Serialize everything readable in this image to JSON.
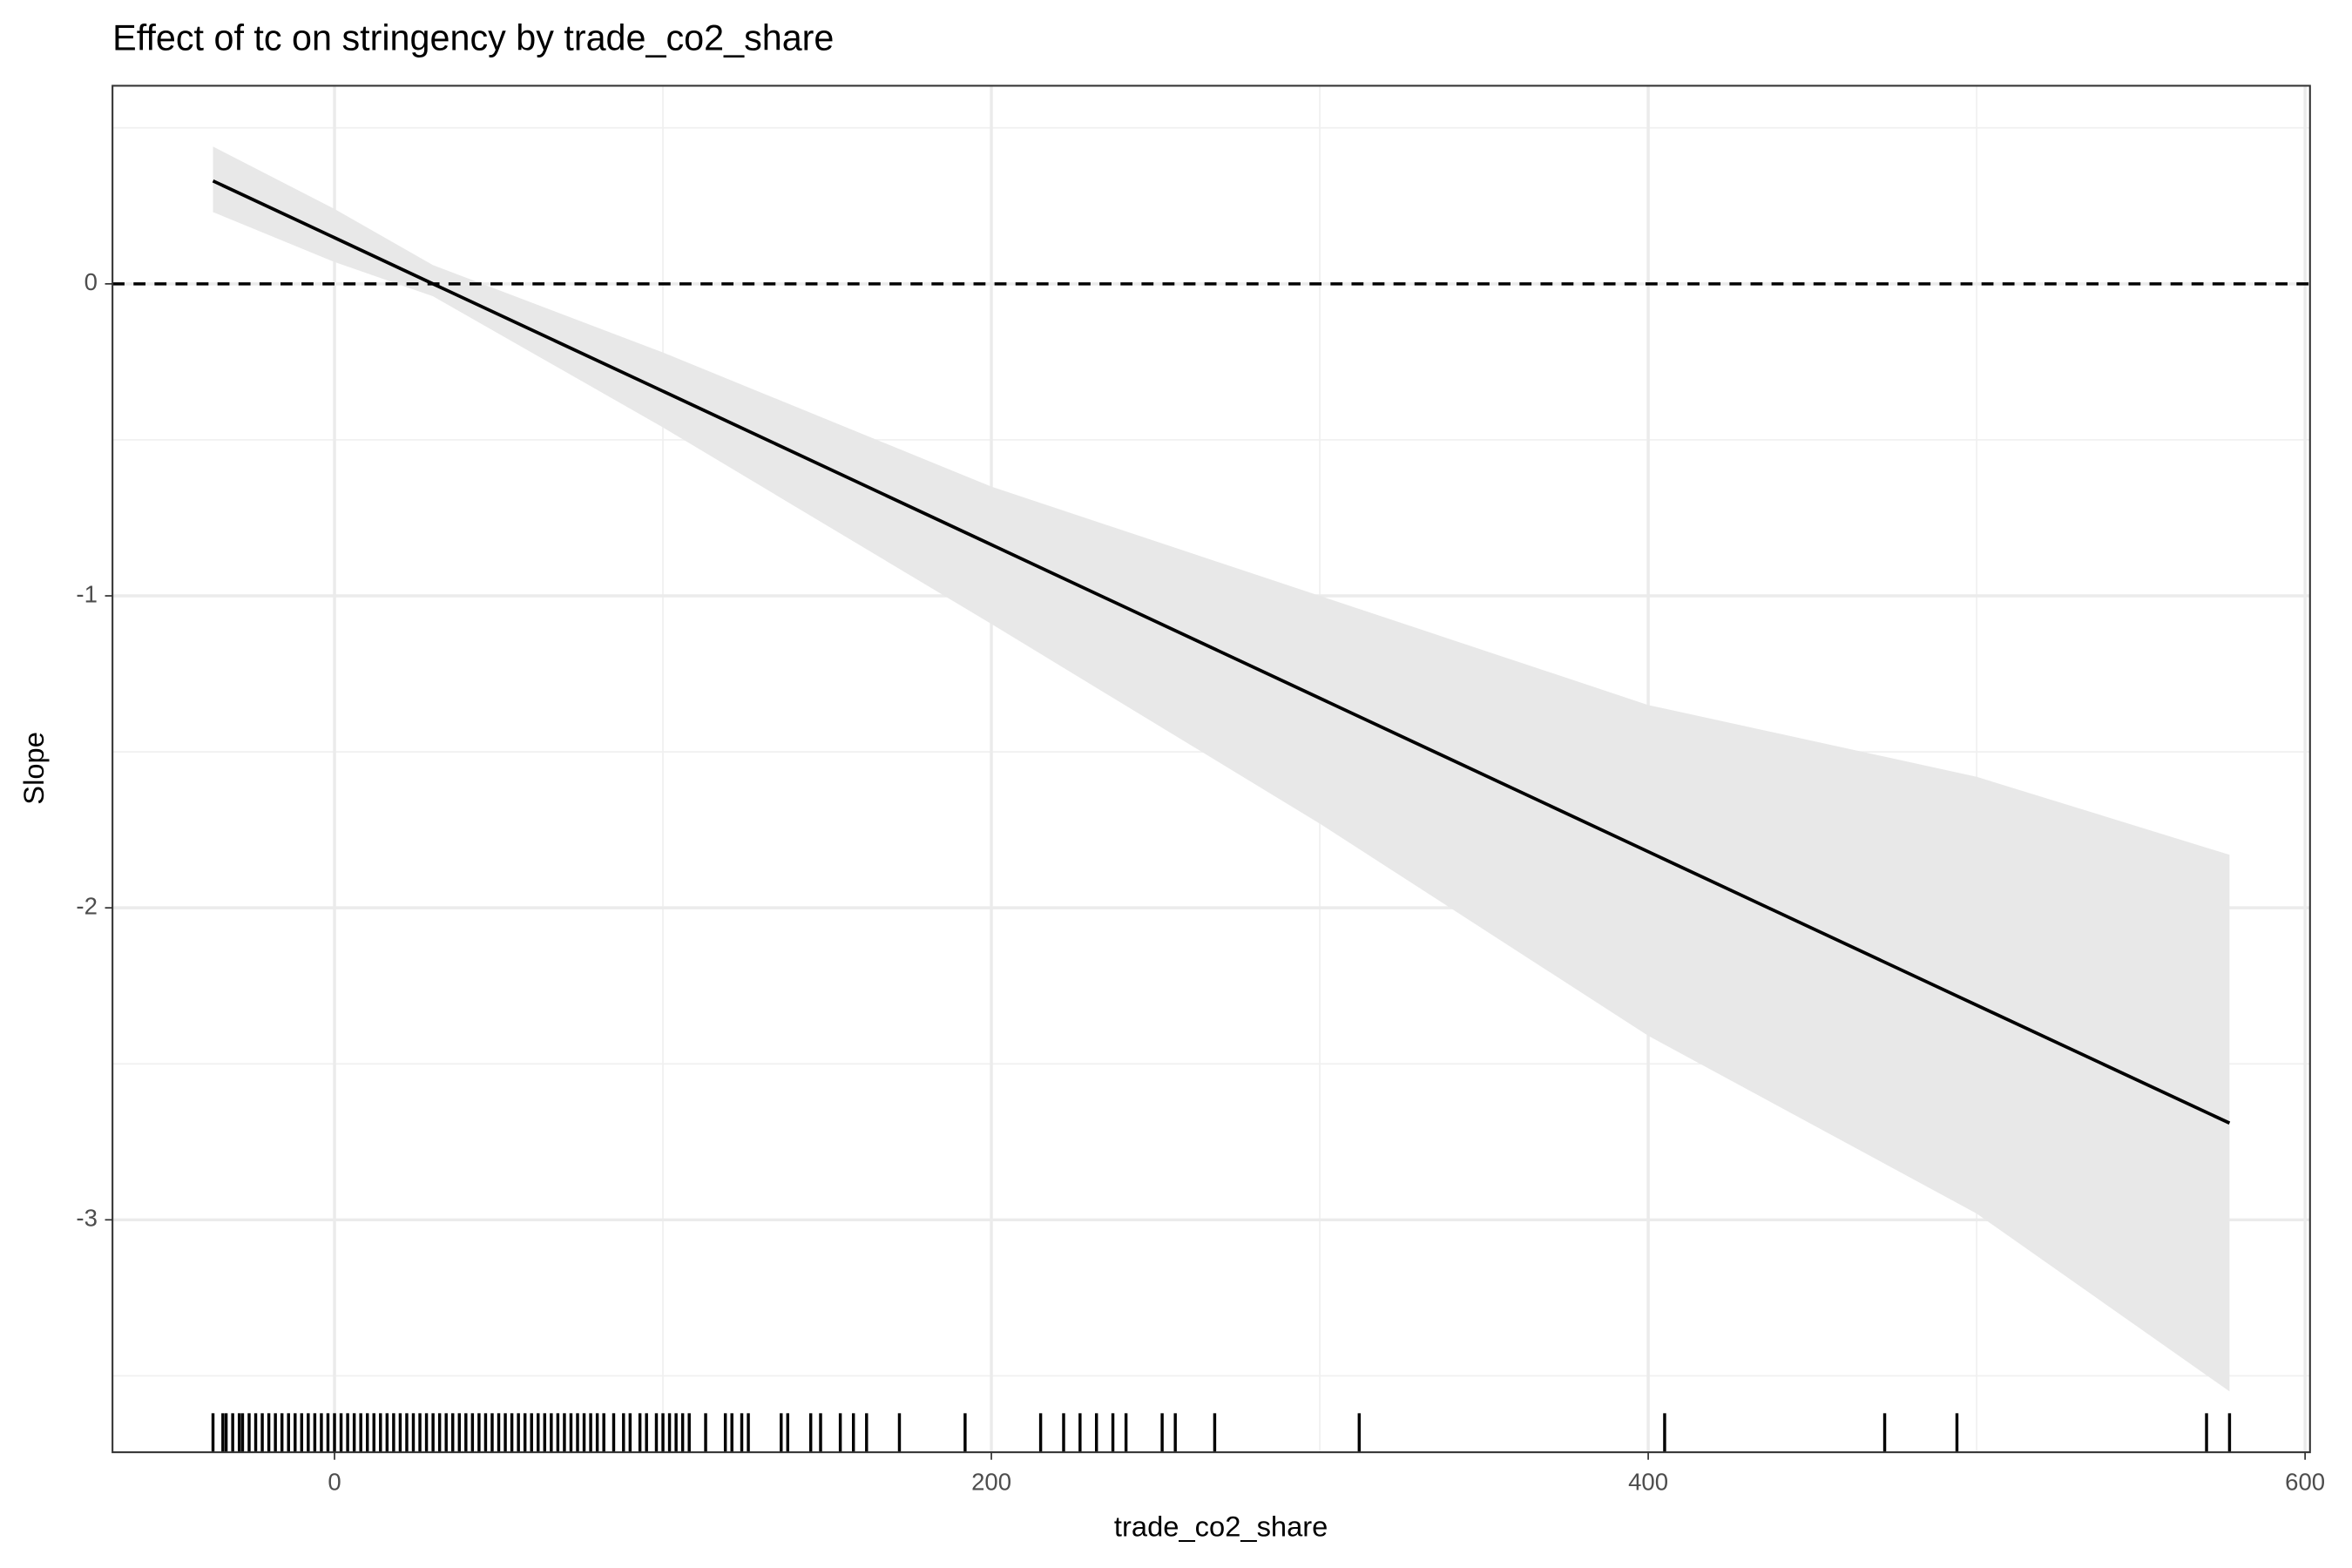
{
  "chart_data": {
    "type": "line",
    "title": "Effect of tc on stringency by trade_co2_share",
    "x_label": "trade_co2_share",
    "y_label": "Slope",
    "x": [
      -37,
      0,
      30,
      100,
      200,
      300,
      400,
      500,
      577
    ],
    "series": [
      {
        "name": "Slope",
        "color": "#000000",
        "values": [
          0.33,
          0.148,
          0.0,
          -0.344,
          -0.836,
          -1.328,
          -1.82,
          -2.312,
          -2.69
        ],
        "lower": [
          0.23,
          0.07,
          -0.04,
          -0.46,
          -1.09,
          -1.73,
          -2.41,
          -2.98,
          -3.55
        ],
        "upper": [
          0.44,
          0.24,
          0.06,
          -0.22,
          -0.65,
          -1.0,
          -1.35,
          -1.58,
          -1.83
        ]
      }
    ],
    "ribbon_color": "#e8e8e8",
    "hline": 0,
    "rug": [
      -37,
      -34,
      -33,
      -31,
      -29,
      -28,
      -26,
      -24,
      -22,
      -20,
      -18,
      -16,
      -14,
      -12,
      -10,
      -8,
      -6,
      -4,
      -2,
      0,
      2,
      4,
      6,
      8,
      10,
      12,
      14,
      16,
      18,
      20,
      22,
      24,
      26,
      28,
      30,
      32,
      34,
      36,
      38,
      40,
      42,
      44,
      46,
      48,
      50,
      52,
      54,
      56,
      58,
      60,
      62,
      64,
      66,
      68,
      70,
      72,
      74,
      76,
      78,
      80,
      82,
      85,
      88,
      90,
      93,
      95,
      98,
      100,
      102,
      104,
      106,
      108,
      113,
      119,
      121,
      124,
      126,
      136,
      138,
      145,
      148,
      154,
      158,
      162,
      172,
      192,
      215,
      222,
      227,
      232,
      237,
      241,
      252,
      256,
      268,
      312,
      405,
      472,
      494,
      570,
      577
    ],
    "xlim": [
      -67.6,
      601.5
    ],
    "ylim": [
      0.635,
      -3.745
    ],
    "xticks": [
      0,
      200,
      400,
      600
    ],
    "yticks": [
      0,
      -1,
      -2,
      -3
    ],
    "grid": true
  }
}
